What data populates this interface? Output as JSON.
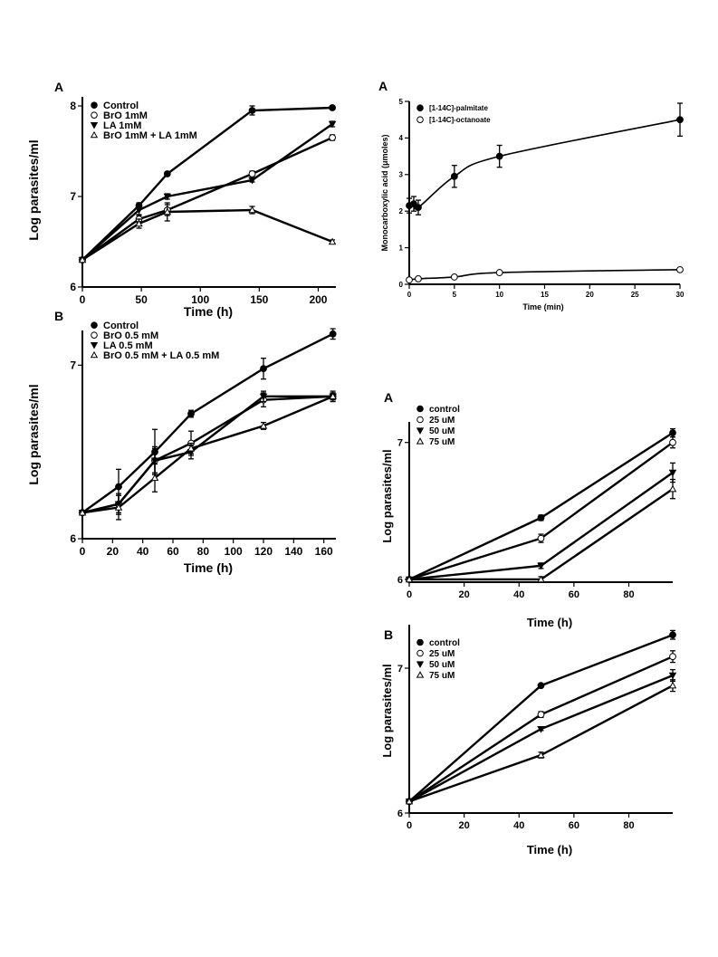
{
  "chart_data": [
    {
      "id": "p1",
      "type": "line",
      "panel_label": "A",
      "xlabel": "Time (h)",
      "ylabel": "Log parasites/ml",
      "xlim": [
        0,
        215
      ],
      "ylim": [
        6,
        8.1
      ],
      "xticks": [
        0,
        50,
        100,
        150,
        200
      ],
      "yticks": [
        6,
        7,
        8
      ],
      "series": [
        {
          "name": "Control",
          "marker": "filled-circle",
          "x": [
            0,
            48,
            72,
            144,
            212
          ],
          "y": [
            6.3,
            6.9,
            7.25,
            7.95,
            7.98
          ],
          "err": [
            0,
            0.03,
            0.02,
            0.05,
            0.02
          ]
        },
        {
          "name": "BrO 1mM",
          "marker": "open-circle",
          "x": [
            0,
            48,
            72,
            144,
            212
          ],
          "y": [
            6.3,
            6.75,
            6.85,
            7.25,
            7.65
          ],
          "err": [
            0,
            0.04,
            0.06,
            0.03,
            0.03
          ]
        },
        {
          "name": "LA 1mM",
          "marker": "filled-triangle-down",
          "x": [
            0,
            48,
            72,
            144,
            212
          ],
          "y": [
            6.3,
            6.85,
            7.0,
            7.18,
            7.8
          ],
          "err": [
            0,
            0.05,
            0.03,
            0.02,
            0.03
          ]
        },
        {
          "name": "BrO 1mM + LA 1mM",
          "marker": "open-triangle-up",
          "x": [
            0,
            48,
            72,
            144,
            212
          ],
          "y": [
            6.3,
            6.7,
            6.83,
            6.85,
            6.5
          ],
          "err": [
            0,
            0.05,
            0.1,
            0.04,
            0.02
          ]
        }
      ]
    },
    {
      "id": "p2",
      "type": "line",
      "panel_label": "B",
      "xlabel": "Time (h)",
      "ylabel": "Log parasites/ml",
      "xlim": [
        0,
        168
      ],
      "ylim": [
        6,
        7.2
      ],
      "xticks": [
        0,
        20,
        40,
        60,
        80,
        100,
        120,
        140,
        160
      ],
      "yticks": [
        6,
        7
      ],
      "series": [
        {
          "name": "Control",
          "marker": "filled-circle",
          "x": [
            0,
            24,
            48,
            72,
            120,
            166
          ],
          "y": [
            6.15,
            6.3,
            6.5,
            6.72,
            6.98,
            7.18
          ],
          "err": [
            0,
            0.1,
            0.13,
            0.02,
            0.06,
            0.03
          ]
        },
        {
          "name": "BrO 0.5 mM",
          "marker": "open-circle",
          "x": [
            0,
            24,
            48,
            72,
            120,
            166
          ],
          "y": [
            6.15,
            6.2,
            6.45,
            6.55,
            6.8,
            6.82
          ],
          "err": [
            0,
            0.05,
            0.07,
            0.07,
            0.04,
            0.03
          ]
        },
        {
          "name": "LA 0.5 mM",
          "marker": "filled-triangle-down",
          "x": [
            0,
            24,
            48,
            72,
            120,
            166
          ],
          "y": [
            6.15,
            6.2,
            6.45,
            6.5,
            6.82,
            6.82
          ],
          "err": [
            0,
            0.06,
            0.08,
            0.04,
            0.03,
            0.02
          ]
        },
        {
          "name": "BrO 0.5 mM + LA 0.5 mM",
          "marker": "open-triangle-up",
          "x": [
            0,
            24,
            48,
            72,
            120,
            166
          ],
          "y": [
            6.15,
            6.18,
            6.35,
            6.52,
            6.65,
            6.82
          ],
          "err": [
            0,
            0.07,
            0.08,
            0.03,
            0.02,
            0.02
          ]
        }
      ]
    },
    {
      "id": "p3",
      "type": "line",
      "panel_label": "A",
      "xlabel": "Time (min)",
      "ylabel": "Monocarboxylic acid (μmoles)",
      "xlim": [
        0,
        30
      ],
      "ylim": [
        0,
        5
      ],
      "xticks": [
        0,
        5,
        10,
        15,
        20,
        25,
        30
      ],
      "yticks": [
        0,
        1,
        2,
        3,
        4,
        5
      ],
      "series": [
        {
          "name": "[1-14C]-palmitate",
          "marker": "filled-circle",
          "x": [
            0,
            0.5,
            1,
            5,
            10,
            30
          ],
          "y": [
            2.15,
            2.2,
            2.1,
            2.95,
            3.5,
            4.5
          ],
          "err": [
            0.2,
            0.2,
            0.2,
            0.3,
            0.3,
            0.45
          ]
        },
        {
          "name": "[1-14C]-octanoate",
          "marker": "open-circle",
          "x": [
            0,
            1,
            5,
            10,
            30
          ],
          "y": [
            0.12,
            0.15,
            0.2,
            0.32,
            0.4
          ],
          "err": [
            0,
            0,
            0,
            0,
            0
          ]
        }
      ]
    },
    {
      "id": "p4",
      "type": "line",
      "panel_label": "A",
      "xlabel": "Time (h)",
      "ylabel": "Log parasites/ml",
      "xlim": [
        0,
        96
      ],
      "ylim": [
        5.98,
        7.15
      ],
      "xticks": [
        0,
        20,
        40,
        60,
        80
      ],
      "yticks": [
        6,
        7
      ],
      "series": [
        {
          "name": "control",
          "marker": "filled-circle",
          "x": [
            0,
            48,
            96
          ],
          "y": [
            6.0,
            6.45,
            7.07
          ],
          "err": [
            0,
            0.02,
            0.03
          ]
        },
        {
          "name": "25 uM",
          "marker": "open-circle",
          "x": [
            0,
            48,
            96
          ],
          "y": [
            6.0,
            6.3,
            7.0
          ],
          "err": [
            0,
            0.03,
            0.04
          ]
        },
        {
          "name": "50 uM",
          "marker": "filled-triangle-down",
          "x": [
            0,
            48,
            96
          ],
          "y": [
            6.0,
            6.1,
            6.78
          ],
          "err": [
            0,
            0.02,
            0.07
          ]
        },
        {
          "name": "75 uM",
          "marker": "open-triangle-up",
          "x": [
            0,
            48,
            96
          ],
          "y": [
            6.0,
            6.0,
            6.66
          ],
          "err": [
            0,
            0.02,
            0.07
          ]
        }
      ]
    },
    {
      "id": "p5",
      "type": "line",
      "panel_label": "B",
      "xlabel": "Time (h)",
      "ylabel": "Log parasites/ml",
      "xlim": [
        0,
        96
      ],
      "ylim": [
        6,
        7.3
      ],
      "xticks": [
        0,
        20,
        40,
        60,
        80
      ],
      "yticks": [
        6,
        7
      ],
      "series": [
        {
          "name": "control",
          "marker": "filled-circle",
          "x": [
            0,
            48,
            96
          ],
          "y": [
            6.08,
            6.88,
            7.23
          ],
          "err": [
            0,
            0.01,
            0.03
          ]
        },
        {
          "name": "25 uM",
          "marker": "open-circle",
          "x": [
            0,
            48,
            96
          ],
          "y": [
            6.08,
            6.68,
            7.08
          ],
          "err": [
            0,
            0.02,
            0.04
          ]
        },
        {
          "name": "50 uM",
          "marker": "filled-triangle-down",
          "x": [
            0,
            48,
            96
          ],
          "y": [
            6.08,
            6.58,
            6.95
          ],
          "err": [
            0,
            0.01,
            0.04
          ]
        },
        {
          "name": "75 uM",
          "marker": "open-triangle-up",
          "x": [
            0,
            48,
            96
          ],
          "y": [
            6.08,
            6.4,
            6.88
          ],
          "err": [
            0,
            0.02,
            0.04
          ]
        }
      ]
    }
  ]
}
